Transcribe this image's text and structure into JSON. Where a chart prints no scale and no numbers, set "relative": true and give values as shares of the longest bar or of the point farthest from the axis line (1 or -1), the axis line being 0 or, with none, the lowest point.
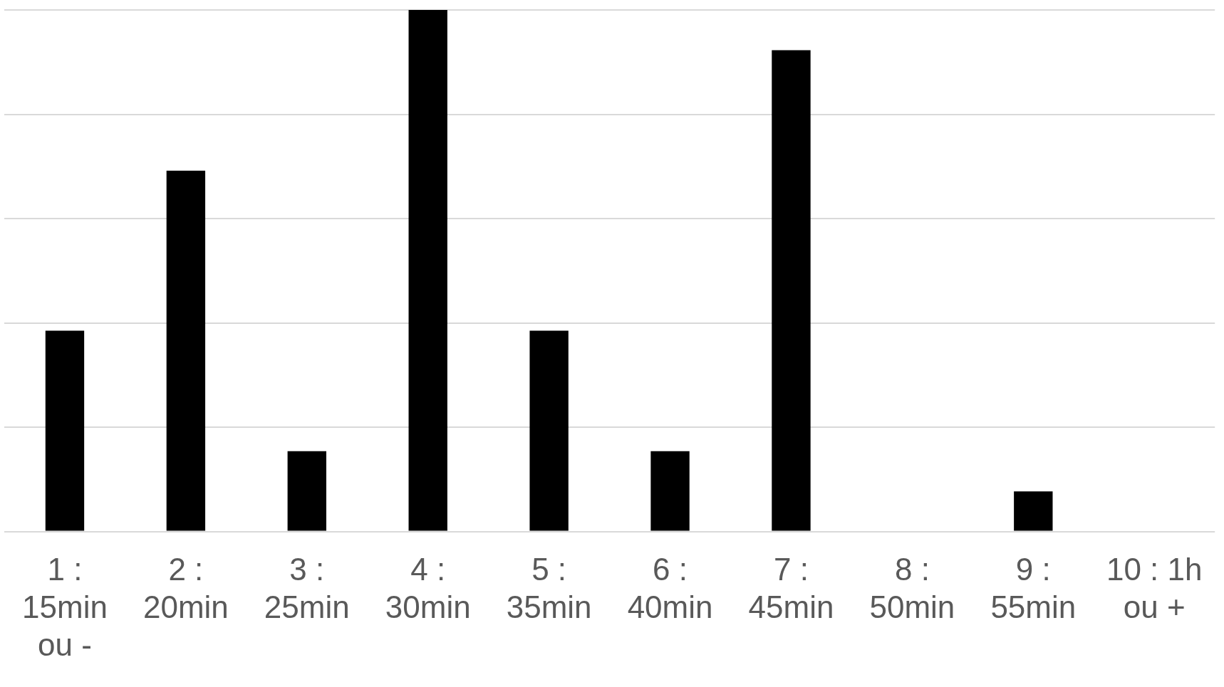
{
  "chart_data": {
    "type": "bar",
    "relative": true,
    "grid": true,
    "legend": false,
    "categories": [
      "1 : 15min ou -",
      "2 : 20min",
      "3 : 25min",
      "4 : 30min",
      "5 : 35min",
      "6 : 40min",
      "7 : 45min",
      "8 : 50min",
      "9 : 55min",
      "10 : 1h ou +"
    ],
    "color": "#000000",
    "values": [
      0.385,
      0.692,
      0.154,
      1,
      0.385,
      0.154,
      0.923,
      0,
      0.077,
      0
    ]
  }
}
